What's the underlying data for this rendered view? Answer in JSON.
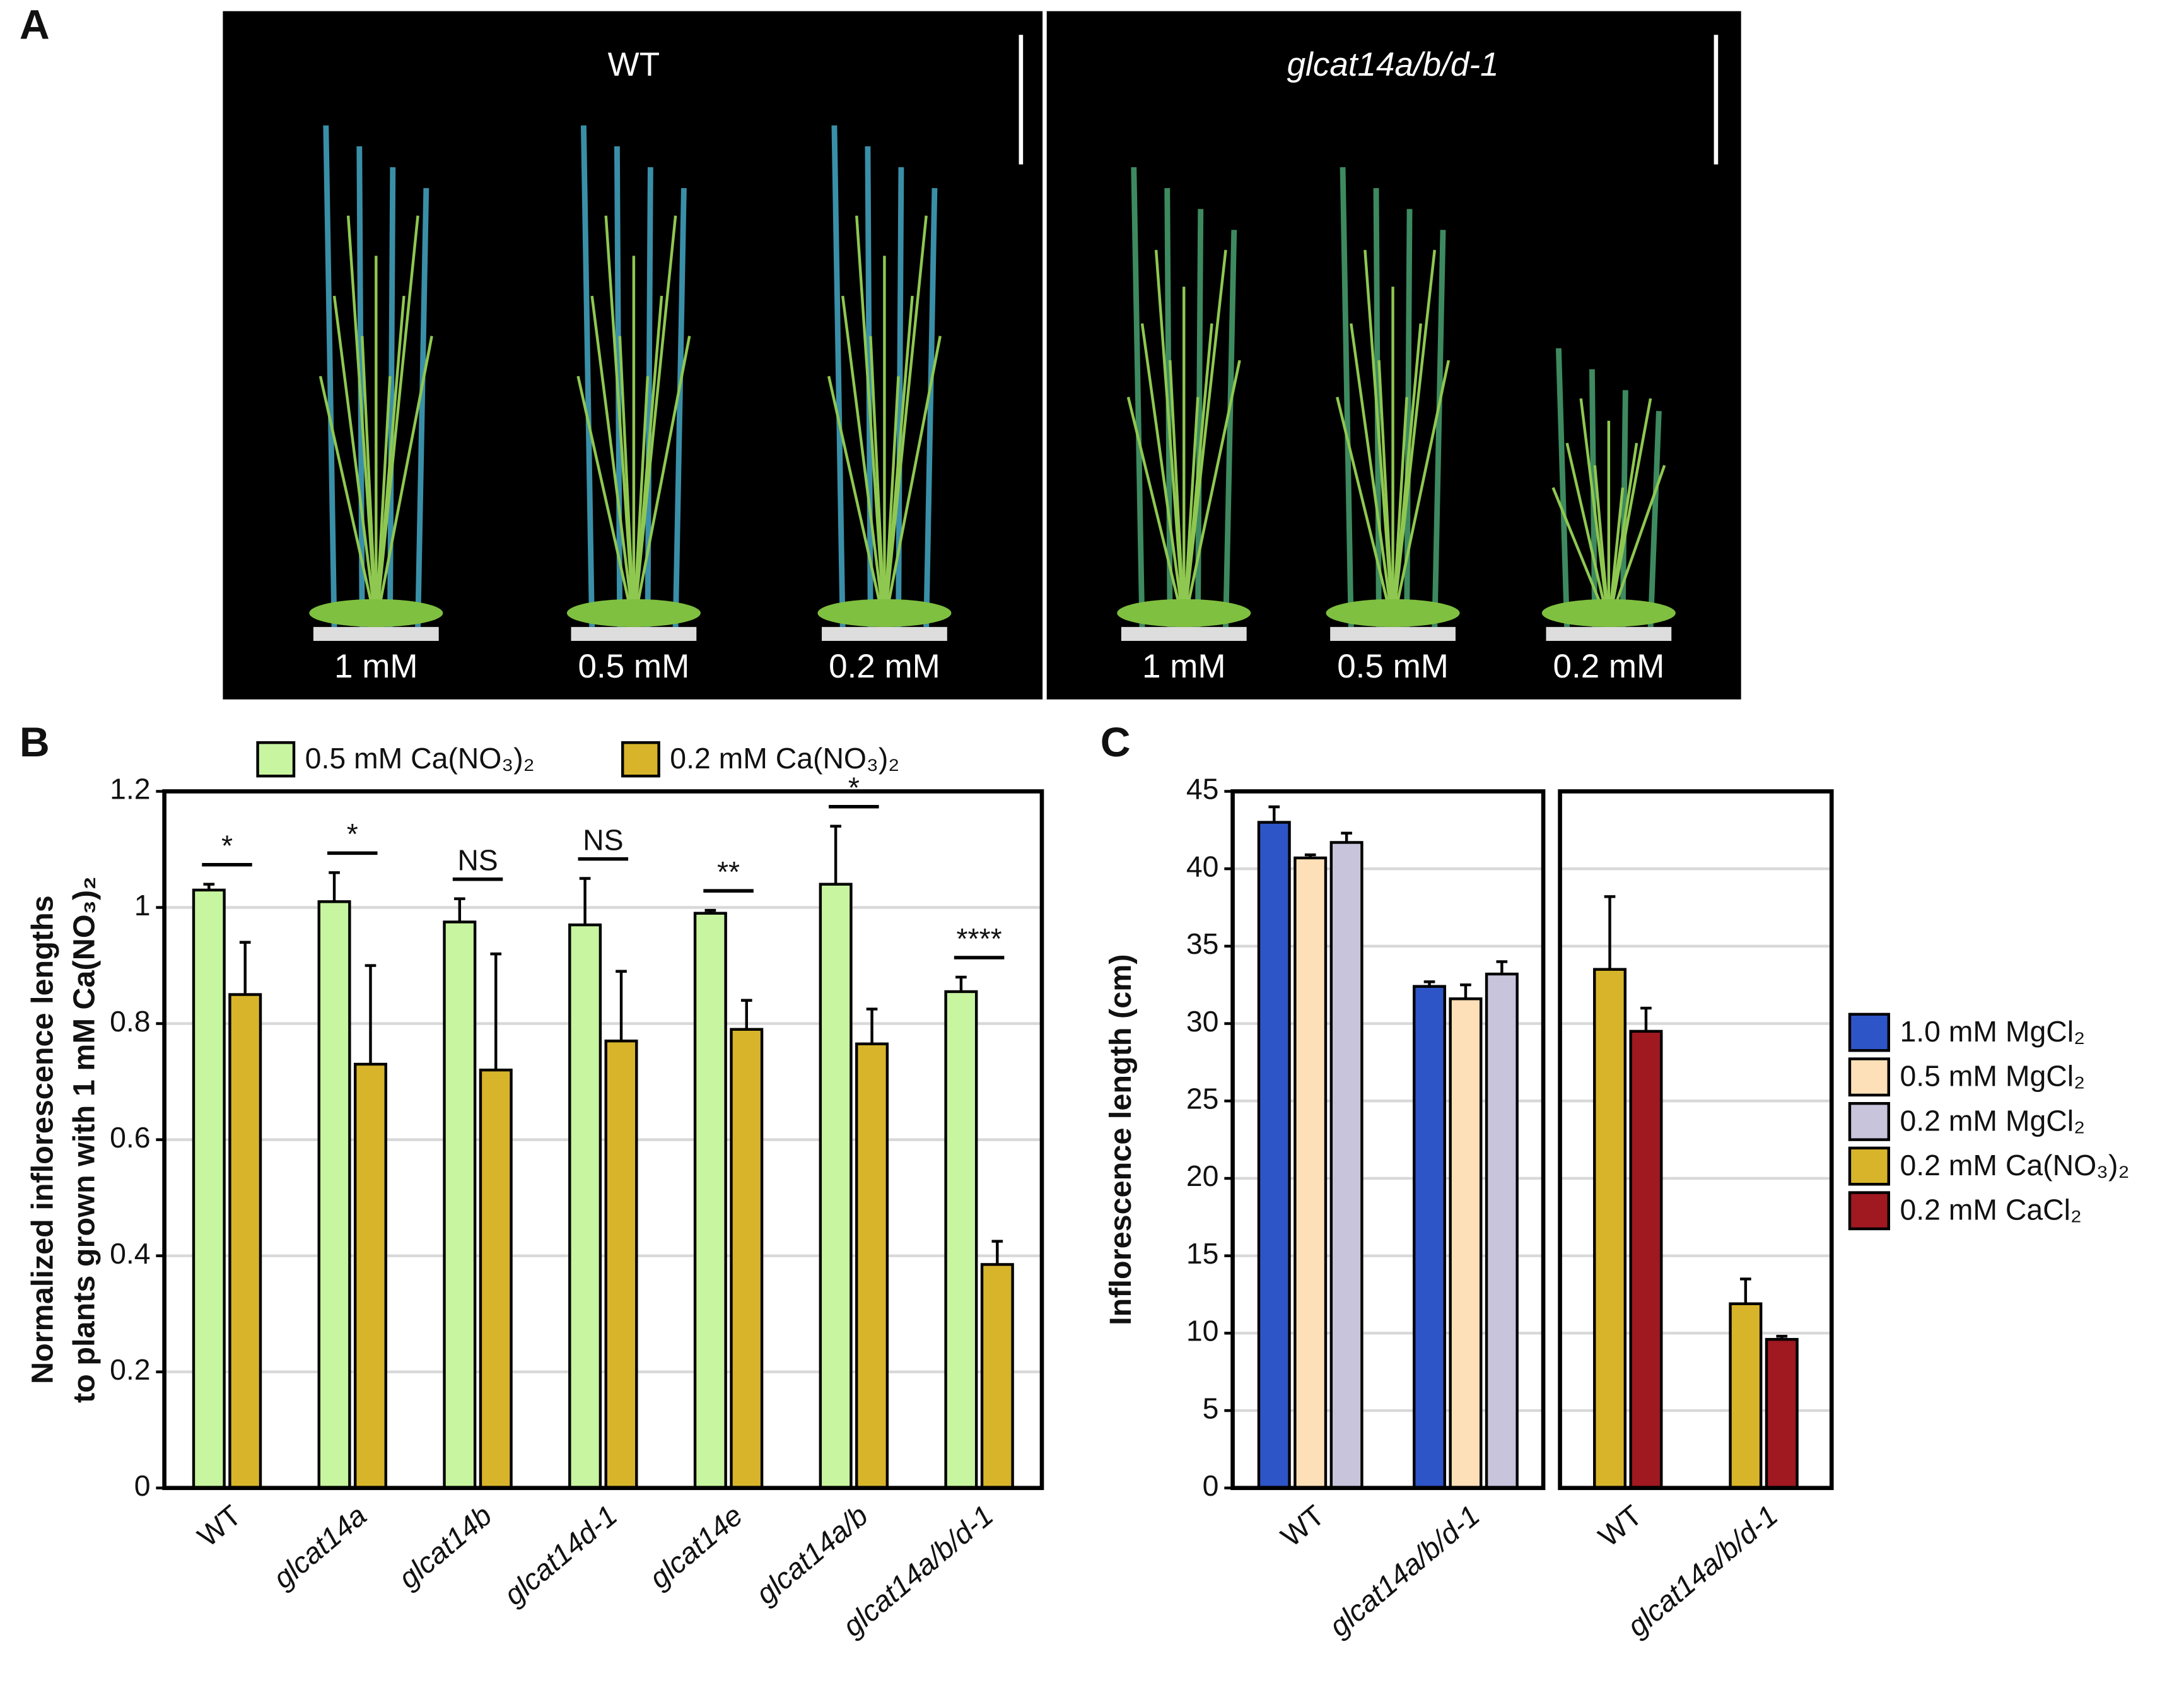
{
  "panel_labels": [
    "A",
    "B",
    "C"
  ],
  "photo": {
    "groups": [
      "WT",
      "glcat14a/b/d-1"
    ],
    "conditions": [
      [
        "1 mM",
        "0.5 mM",
        "0.2 mM"
      ],
      [
        "1 mM",
        "0.5 mM",
        "0.2 mM"
      ]
    ]
  },
  "chart_data": [
    {
      "type": "bar",
      "ylabel": [
        "Normalized inflorescence lengths",
        "to plants grown with 1 mM Ca(NO₃)₂"
      ],
      "categories": [
        "WT",
        "glcat14a",
        "glcat14b",
        "glcat14d-1",
        "glcat14e",
        "glcat14a/b",
        "glcat14a/b/d-1"
      ],
      "annotations": [
        "*",
        "*",
        "NS",
        "NS",
        "**",
        "*",
        "****"
      ],
      "series": [
        {
          "name": "0.5 mM Ca(NO₃)₂",
          "color": "#c8f5a0",
          "values": [
            1.03,
            1.01,
            0.975,
            0.97,
            0.99,
            1.04,
            0.855
          ],
          "errors": [
            0.01,
            0.05,
            0.04,
            0.08,
            0.005,
            0.1,
            0.025
          ]
        },
        {
          "name": "0.2 mM Ca(NO₃)₂",
          "color": "#d8b42a",
          "values": [
            0.85,
            0.73,
            0.72,
            0.77,
            0.79,
            0.765,
            0.385
          ],
          "errors": [
            0.09,
            0.17,
            0.2,
            0.12,
            0.05,
            0.06,
            0.04
          ]
        }
      ],
      "ylim": [
        0,
        1.2
      ],
      "yticks": [
        0,
        0.2,
        0.4,
        0.6,
        0.8,
        1,
        1.2
      ],
      "grid": true
    },
    {
      "type": "bar",
      "ylabel": "Inflorescence length (cm)",
      "categories": [
        "WT",
        "glcat14a/b/d-1"
      ],
      "series": [
        {
          "name": "1.0 mM MgCl₂",
          "color": "#2e55c8",
          "values": [
            43,
            32.4
          ],
          "errors": [
            1.0,
            0.3
          ]
        },
        {
          "name": "0.5 mM MgCl₂",
          "color": "#fde0b8",
          "values": [
            40.7,
            31.6
          ],
          "errors": [
            0.2,
            0.9
          ]
        },
        {
          "name": "0.2 mM MgCl₂",
          "color": "#c8c4dc",
          "values": [
            41.7,
            33.2
          ],
          "errors": [
            0.6,
            0.8
          ]
        }
      ],
      "ylim": [
        0,
        45
      ],
      "yticks": [
        0,
        5,
        10,
        15,
        20,
        25,
        30,
        35,
        40,
        45
      ],
      "grid": true
    },
    {
      "type": "bar",
      "categories": [
        "WT",
        "glcat14a/b/d-1"
      ],
      "series": [
        {
          "name": "0.2 mM Ca(NO₃)₂",
          "color": "#d8b42a",
          "values": [
            33.5,
            11.9
          ],
          "errors": [
            4.7,
            1.6
          ]
        },
        {
          "name": "0.2 mM CaCl₂",
          "color": "#a01820",
          "values": [
            29.5,
            9.6
          ],
          "errors": [
            1.5,
            0.2
          ]
        }
      ],
      "ylim": [
        0,
        45
      ],
      "yticks": [
        0,
        5,
        10,
        15,
        20,
        25,
        30,
        35,
        40,
        45
      ],
      "grid": true
    }
  ]
}
